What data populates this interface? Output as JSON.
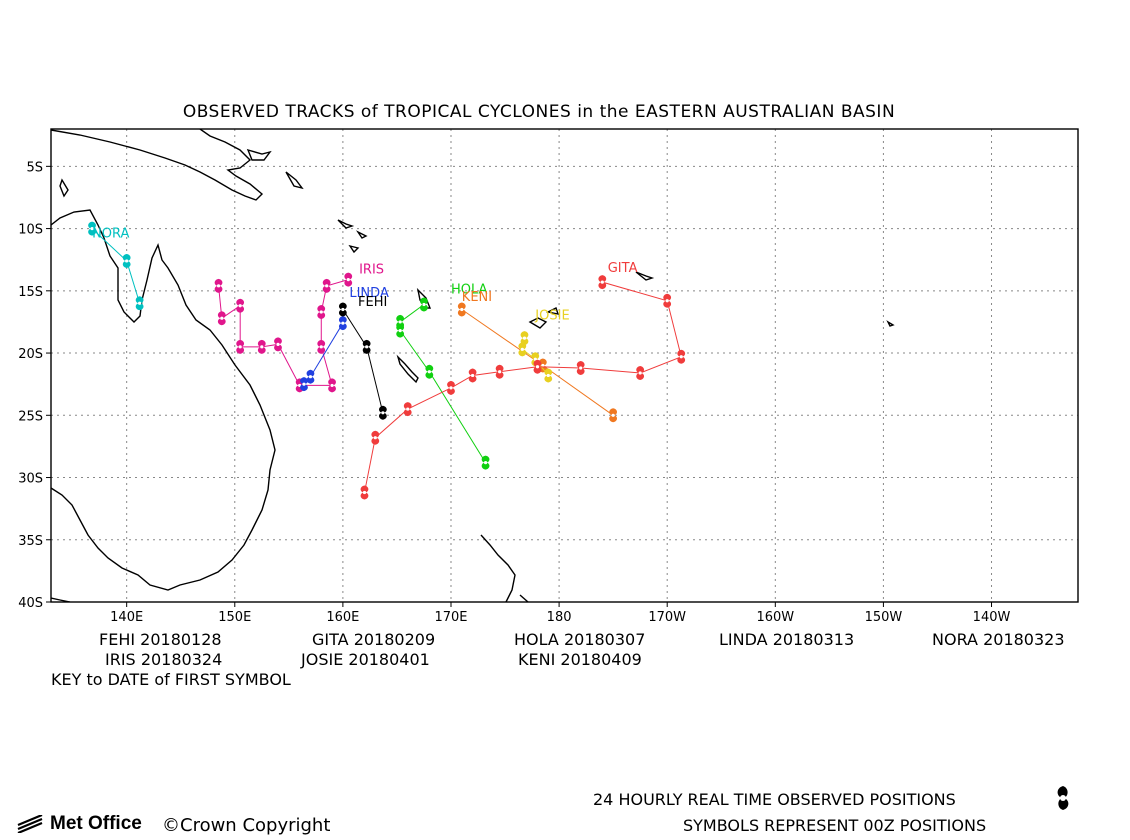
{
  "title": "OBSERVED TRACKS of TROPICAL CYCLONES in the EASTERN AUSTRALIAN BASIN",
  "axes": {
    "x_ticks": [
      "140E",
      "150E",
      "160E",
      "170E",
      "180",
      "170W",
      "160W",
      "150W",
      "140W"
    ],
    "y_ticks": [
      "5S",
      "10S",
      "15S",
      "20S",
      "25S",
      "30S",
      "35S",
      "40S"
    ]
  },
  "legend": [
    {
      "name": "FEHI",
      "date": "20180128"
    },
    {
      "name": "GITA",
      "date": "20180209"
    },
    {
      "name": "HOLA",
      "date": "20180307"
    },
    {
      "name": "LINDA",
      "date": "20180313"
    },
    {
      "name": "NORA",
      "date": "20180323"
    },
    {
      "name": "IRIS",
      "date": "20180324"
    },
    {
      "name": "JOSIE",
      "date": "20180401"
    },
    {
      "name": "KENI",
      "date": "20180409"
    }
  ],
  "key_text": "KEY to DATE of FIRST SYMBOL",
  "footer": {
    "line1": "24 HOURLY REAL TIME OBSERVED POSITIONS",
    "line2": "SYMBOLS REPRESENT 00Z POSITIONS",
    "brand": "Met Office",
    "copyright": "©Crown Copyright"
  },
  "icons": {
    "symbol": "cyclone-symbol-icon",
    "brand_logo": "met-office-logo-icon"
  },
  "chart_data": {
    "type": "scatter",
    "title": "OBSERVED TRACKS of TROPICAL CYCLONES in the EASTERN AUSTRALIAN BASIN",
    "xlim": [
      133,
      228
    ],
    "ylim": [
      -40,
      -2
    ],
    "grid": true,
    "series": [
      {
        "name": "NORA",
        "color": "#00c0c0",
        "labels": [
          -10.7,
          136.8
        ],
        "points": [
          [
            136.8,
            -10.0
          ],
          [
            140.0,
            -12.6
          ],
          [
            141.2,
            -16.0
          ]
        ]
      },
      {
        "name": "IRIS",
        "color": "#e0168c",
        "labels": [
          -13.6,
          161.5
        ],
        "points": [
          [
            148.5,
            -14.6
          ],
          [
            148.8,
            -17.2
          ],
          [
            150.5,
            -16.2
          ],
          [
            150.5,
            -19.5
          ],
          [
            152.5,
            -19.5
          ],
          [
            154.0,
            -19.3
          ],
          [
            156.0,
            -22.6
          ],
          [
            159.0,
            -22.6
          ],
          [
            158.0,
            -19.5
          ],
          [
            158.0,
            -16.7
          ],
          [
            158.5,
            -14.6
          ],
          [
            160.5,
            -14.1
          ]
        ]
      },
      {
        "name": "LINDA",
        "color": "#2040e0",
        "labels": [
          -15.5,
          160.6
        ],
        "points": [
          [
            160.0,
            -17.6
          ],
          [
            157.0,
            -21.9
          ],
          [
            156.4,
            -22.5
          ]
        ]
      },
      {
        "name": "FEHI",
        "color": "#000000",
        "labels": [
          -16.2,
          161.4
        ],
        "points": [
          [
            160.0,
            -16.5
          ],
          [
            162.2,
            -19.5
          ],
          [
            163.7,
            -24.8
          ]
        ]
      },
      {
        "name": "HOLA",
        "color": "#10d010",
        "labels": [
          -15.2,
          170.0
        ],
        "points": [
          [
            167.5,
            -16.1
          ],
          [
            165.3,
            -17.5
          ],
          [
            165.3,
            -18.2
          ],
          [
            168.0,
            -21.5
          ],
          [
            173.2,
            -28.8
          ]
        ]
      },
      {
        "name": "KENI",
        "color": "#f07820",
        "labels": [
          -15.8,
          171.0
        ],
        "points": [
          [
            171.0,
            -16.5
          ],
          [
            178.5,
            -21.0
          ],
          [
            185.0,
            -25.0
          ]
        ]
      },
      {
        "name": "JOSIE",
        "color": "#e8d020",
        "labels": [
          -17.3,
          177.8
        ],
        "points": [
          [
            176.8,
            -18.8
          ],
          [
            176.6,
            -19.7
          ],
          [
            177.8,
            -20.5
          ],
          [
            179.0,
            -21.8
          ]
        ]
      },
      {
        "name": "GITA",
        "color": "#f03c3c",
        "labels": [
          -13.5,
          184.5
        ],
        "points": [
          [
            184.0,
            -14.3
          ],
          [
            190.0,
            -15.8
          ],
          [
            191.3,
            -20.3
          ],
          [
            187.5,
            -21.6
          ],
          [
            182.0,
            -21.2
          ],
          [
            178.0,
            -21.1
          ],
          [
            174.5,
            -21.5
          ],
          [
            172.0,
            -21.8
          ],
          [
            170.0,
            -22.8
          ],
          [
            166.0,
            -24.5
          ],
          [
            163.0,
            -26.8
          ],
          [
            162.0,
            -31.2
          ]
        ]
      }
    ]
  }
}
